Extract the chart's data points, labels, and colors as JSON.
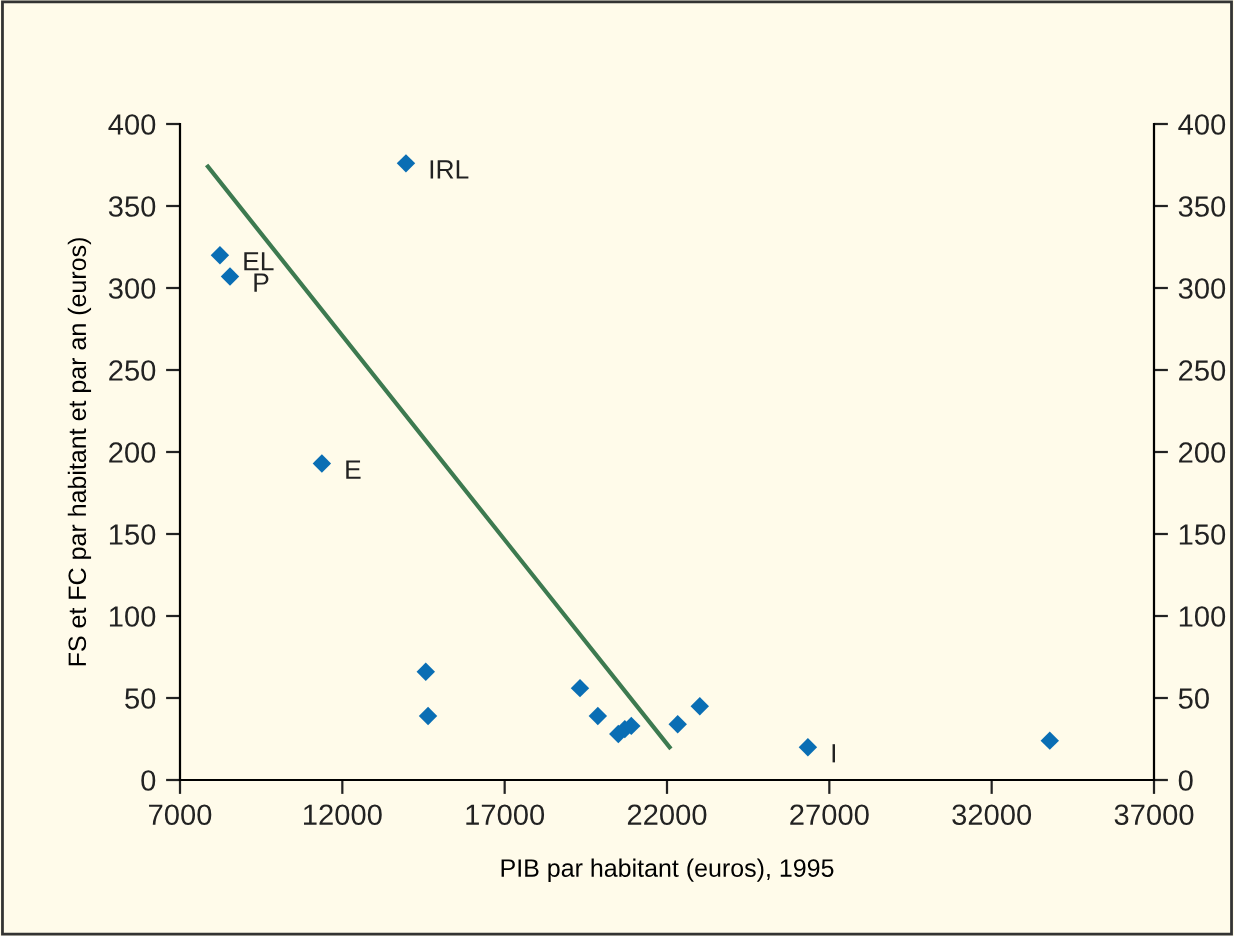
{
  "chart_data": {
    "type": "scatter",
    "xlabel": "PIB par habitant (euros), 1995",
    "ylabel": "FS et FC par habitant et par an (euros)",
    "xlim": [
      7000,
      37000
    ],
    "xticks": [
      7000,
      12000,
      17000,
      22000,
      27000,
      32000,
      37000
    ],
    "ylim": [
      0,
      400
    ],
    "yticks": [
      0,
      50,
      100,
      150,
      200,
      250,
      300,
      350,
      400
    ],
    "y2lim": [
      0,
      400
    ],
    "y2ticks": [
      0,
      50,
      100,
      150,
      200,
      250,
      300,
      350,
      400
    ],
    "grid": false,
    "legend": false,
    "marker": "diamond",
    "series": [
      {
        "color": "#0a6eb4",
        "x": [
          8230,
          8540,
          11370,
          13960,
          14570,
          14640,
          19320,
          19870,
          20500,
          20700,
          20900,
          22330,
          23010,
          26340,
          33790
        ],
        "values": [
          320,
          307,
          193,
          376,
          66,
          39,
          56,
          39,
          28,
          31,
          33,
          34,
          45,
          20,
          24
        ]
      },
      {
        "type": "line",
        "marker": "none",
        "color": "#3d7a50",
        "x": [
          7860,
          22080
        ],
        "values": [
          374,
          20
        ]
      }
    ],
    "annotations": [
      {
        "text": "EL",
        "x": 8230,
        "y": 320
      },
      {
        "text": "P",
        "x": 8540,
        "y": 307
      },
      {
        "text": "E",
        "x": 11370,
        "y": 193
      },
      {
        "text": "IRL",
        "x": 13960,
        "y": 376
      },
      {
        "text": "I",
        "x": 26340,
        "y": 20
      }
    ]
  }
}
